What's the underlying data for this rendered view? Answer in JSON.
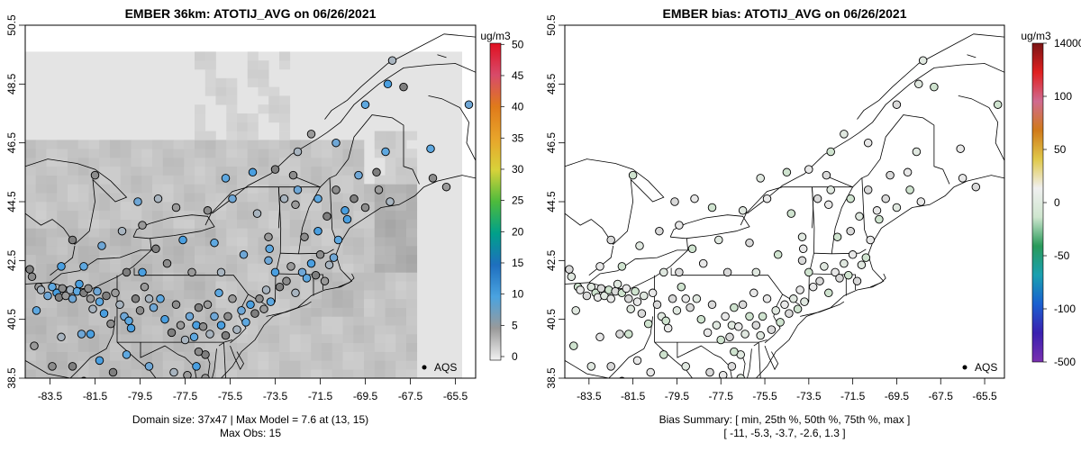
{
  "chart_data": [
    {
      "type": "map",
      "title": "EMBER 36km: ATOTIJ_AVG on 06/26/2021",
      "x_ticks": [
        "-83.5",
        "-81.5",
        "-79.5",
        "-77.5",
        "-75.5",
        "-73.5",
        "-71.5",
        "-69.5",
        "-67.5",
        "-65.5"
      ],
      "y_ticks": [
        "38.5",
        "40.5",
        "42.5",
        "44.5",
        "46.5",
        "48.5",
        "50.5"
      ],
      "xlim": [
        -84.6,
        -64.6
      ],
      "ylim": [
        38.5,
        50.5
      ],
      "colorbar": {
        "unit": "ug/m3",
        "labels": [
          "0",
          "5",
          "10",
          "15",
          "20",
          "25",
          "30",
          "35",
          "40",
          "45",
          "50"
        ],
        "stops": [
          "#f2f2f2",
          "#9a9a9a",
          "#4aa3e0",
          "#1e6fbf",
          "#00a08a",
          "#4dbb3c",
          "#d8d23a",
          "#e8a42a",
          "#e07a1a",
          "#d84a6a",
          "#e01020"
        ]
      },
      "legend": "AQS",
      "footer": [
        "Domain size: 37x47 | Max Model = 7.6 at (13, 15)",
        "Max Obs: 15"
      ],
      "marker_colors": [
        "#7f7f7f",
        "#8c8c8c",
        "#9a9a9a",
        "#a8b4bf",
        "#6fa7d6",
        "#5ea8e0",
        "#4a9fe0"
      ]
    },
    {
      "type": "map",
      "title": "EMBER bias: ATOTIJ_AVG on 06/26/2021",
      "x_ticks": [
        "-83.5",
        "-81.5",
        "-79.5",
        "-77.5",
        "-75.5",
        "-73.5",
        "-71.5",
        "-69.5",
        "-67.5",
        "-65.5"
      ],
      "y_ticks": [
        "38.5",
        "40.5",
        "42.5",
        "44.5",
        "46.5",
        "48.5",
        "50.5"
      ],
      "xlim": [
        -84.6,
        -64.6
      ],
      "ylim": [
        38.5,
        50.5
      ],
      "colorbar": {
        "unit": "ug/m3",
        "labels": [
          "14000",
          "100",
          "50",
          "0",
          "-50",
          "-100",
          "-500"
        ],
        "stops": [
          "#7a1414",
          "#e02020",
          "#d06a90",
          "#d07a1a",
          "#e0c84a",
          "#f0f0f0",
          "#cfe6cf",
          "#2a9a5a",
          "#1aa0b0",
          "#1a60d0",
          "#3a20b0",
          "#7a30b0"
        ]
      },
      "legend": "AQS",
      "footer": [
        "Bias Summary: [ min, 25th %, 50th %, 75th %, max ]",
        "[ -11,   -5.3,   -3.7,   -2.6,   1.3 ]"
      ],
      "marker_colors": [
        "#d9d9d9",
        "#e0e8e0",
        "#cfe3cf",
        "#e8e8e8"
      ],
      "bias_summary": {
        "min": -11,
        "p25": -5.3,
        "p50": -3.7,
        "p75": -2.6,
        "max": 1.3
      }
    }
  ]
}
